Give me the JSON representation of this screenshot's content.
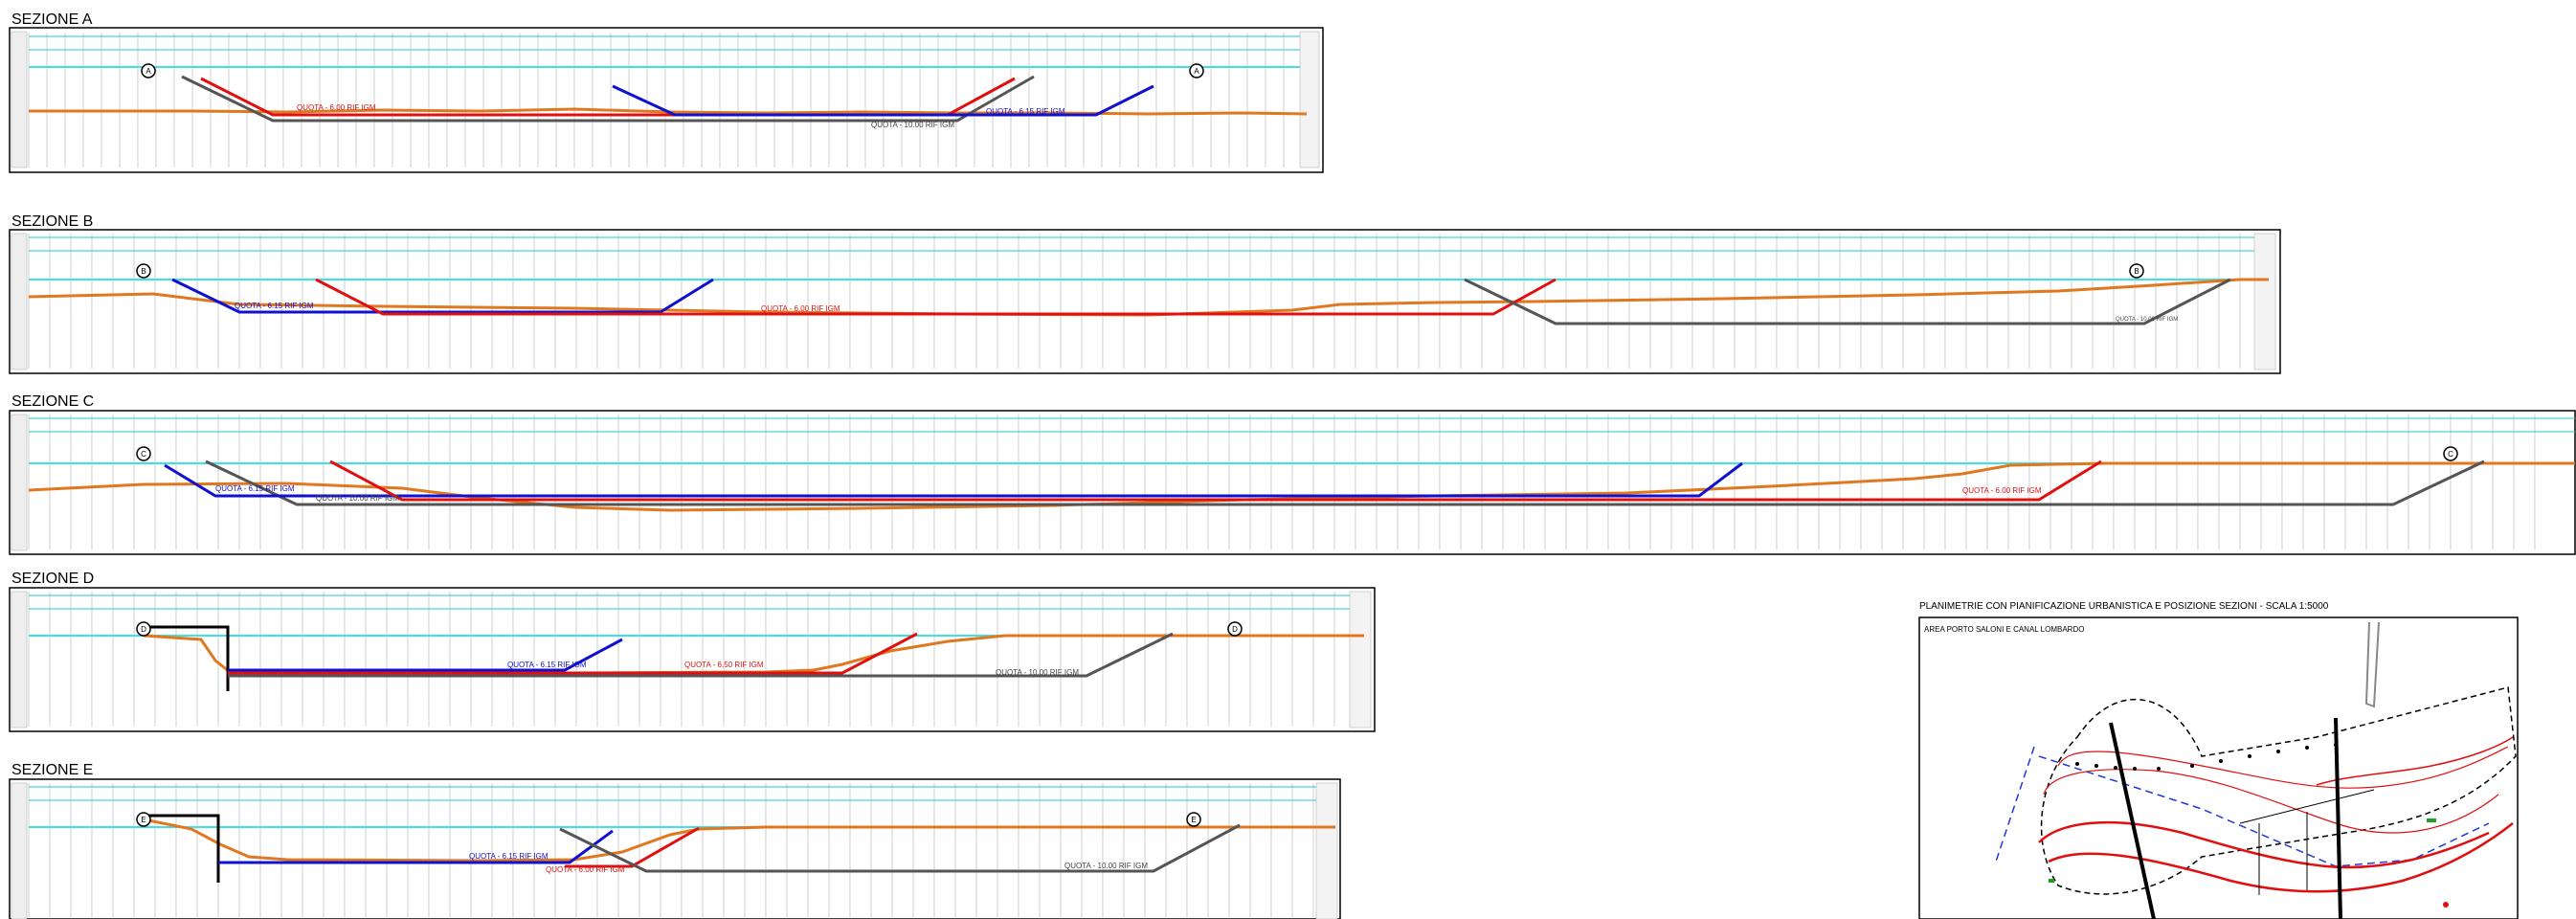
{
  "sections": [
    {
      "id": "A",
      "title": "SEZIONE A",
      "markers": [
        "A",
        "A"
      ],
      "labels": [
        {
          "text": "QUOTA - 6.00 RIF IGM",
          "color": "#e01010"
        },
        {
          "text": "QUOTA - 10.00 RIF IGM",
          "color": "#444444"
        },
        {
          "text": "QUOTA - 6.15 RIF IGM",
          "color": "#1010d0"
        }
      ]
    },
    {
      "id": "B",
      "title": "SEZIONE B",
      "markers": [
        "B",
        "B"
      ],
      "labels": [
        {
          "text": "QUOTA - 6.15 RIF IGM",
          "color": "#1010d0"
        },
        {
          "text": "QUOTA - 6.00 RIF IGM",
          "color": "#e01010"
        },
        {
          "text": "QUOTA - 10.00 RIF IGM",
          "color": "#444444"
        }
      ]
    },
    {
      "id": "C",
      "title": "SEZIONE C",
      "markers": [
        "C",
        "C"
      ],
      "labels": [
        {
          "text": "QUOTA - 6.15 RIF IGM",
          "color": "#1010d0"
        },
        {
          "text": "QUOTA - 10.00 RIF IGM",
          "color": "#444444"
        },
        {
          "text": "QUOTA - 6.00 RIF IGM",
          "color": "#e01010"
        }
      ]
    },
    {
      "id": "D",
      "title": "SEZIONE D",
      "markers": [
        "D",
        "D"
      ],
      "labels": [
        {
          "text": "QUOTA - 6.15 RIF IGM",
          "color": "#1010d0"
        },
        {
          "text": "QUOTA - 6.50 RIF IGM",
          "color": "#e01010"
        },
        {
          "text": "QUOTA - 10.00 RIF IGM",
          "color": "#444444"
        }
      ]
    },
    {
      "id": "E",
      "title": "SEZIONE E",
      "markers": [
        "E",
        "E"
      ],
      "labels": [
        {
          "text": "QUOTA - 6.15 RIF IGM",
          "color": "#1010d0"
        },
        {
          "text": "QUOTA - 6.00 RIF IGM",
          "color": "#e01010"
        },
        {
          "text": "QUOTA - 10.00 RIF IGM",
          "color": "#444444"
        }
      ]
    }
  ],
  "planimetry": {
    "title": "PLANIMETRIE CON PIANIFICAZIONE URBANISTICA E POSIZIONE SEZIONI - SCALA 1:5000",
    "subtitle": "AREA PORTO SALONI E CANAL LOMBARDO"
  },
  "colors": {
    "water": "#40e0e8",
    "terrain": "#e07820",
    "project_red": "#e01010",
    "project_blue": "#1010d0",
    "project_grey": "#555555",
    "header_cyan": "#20c8d0"
  }
}
